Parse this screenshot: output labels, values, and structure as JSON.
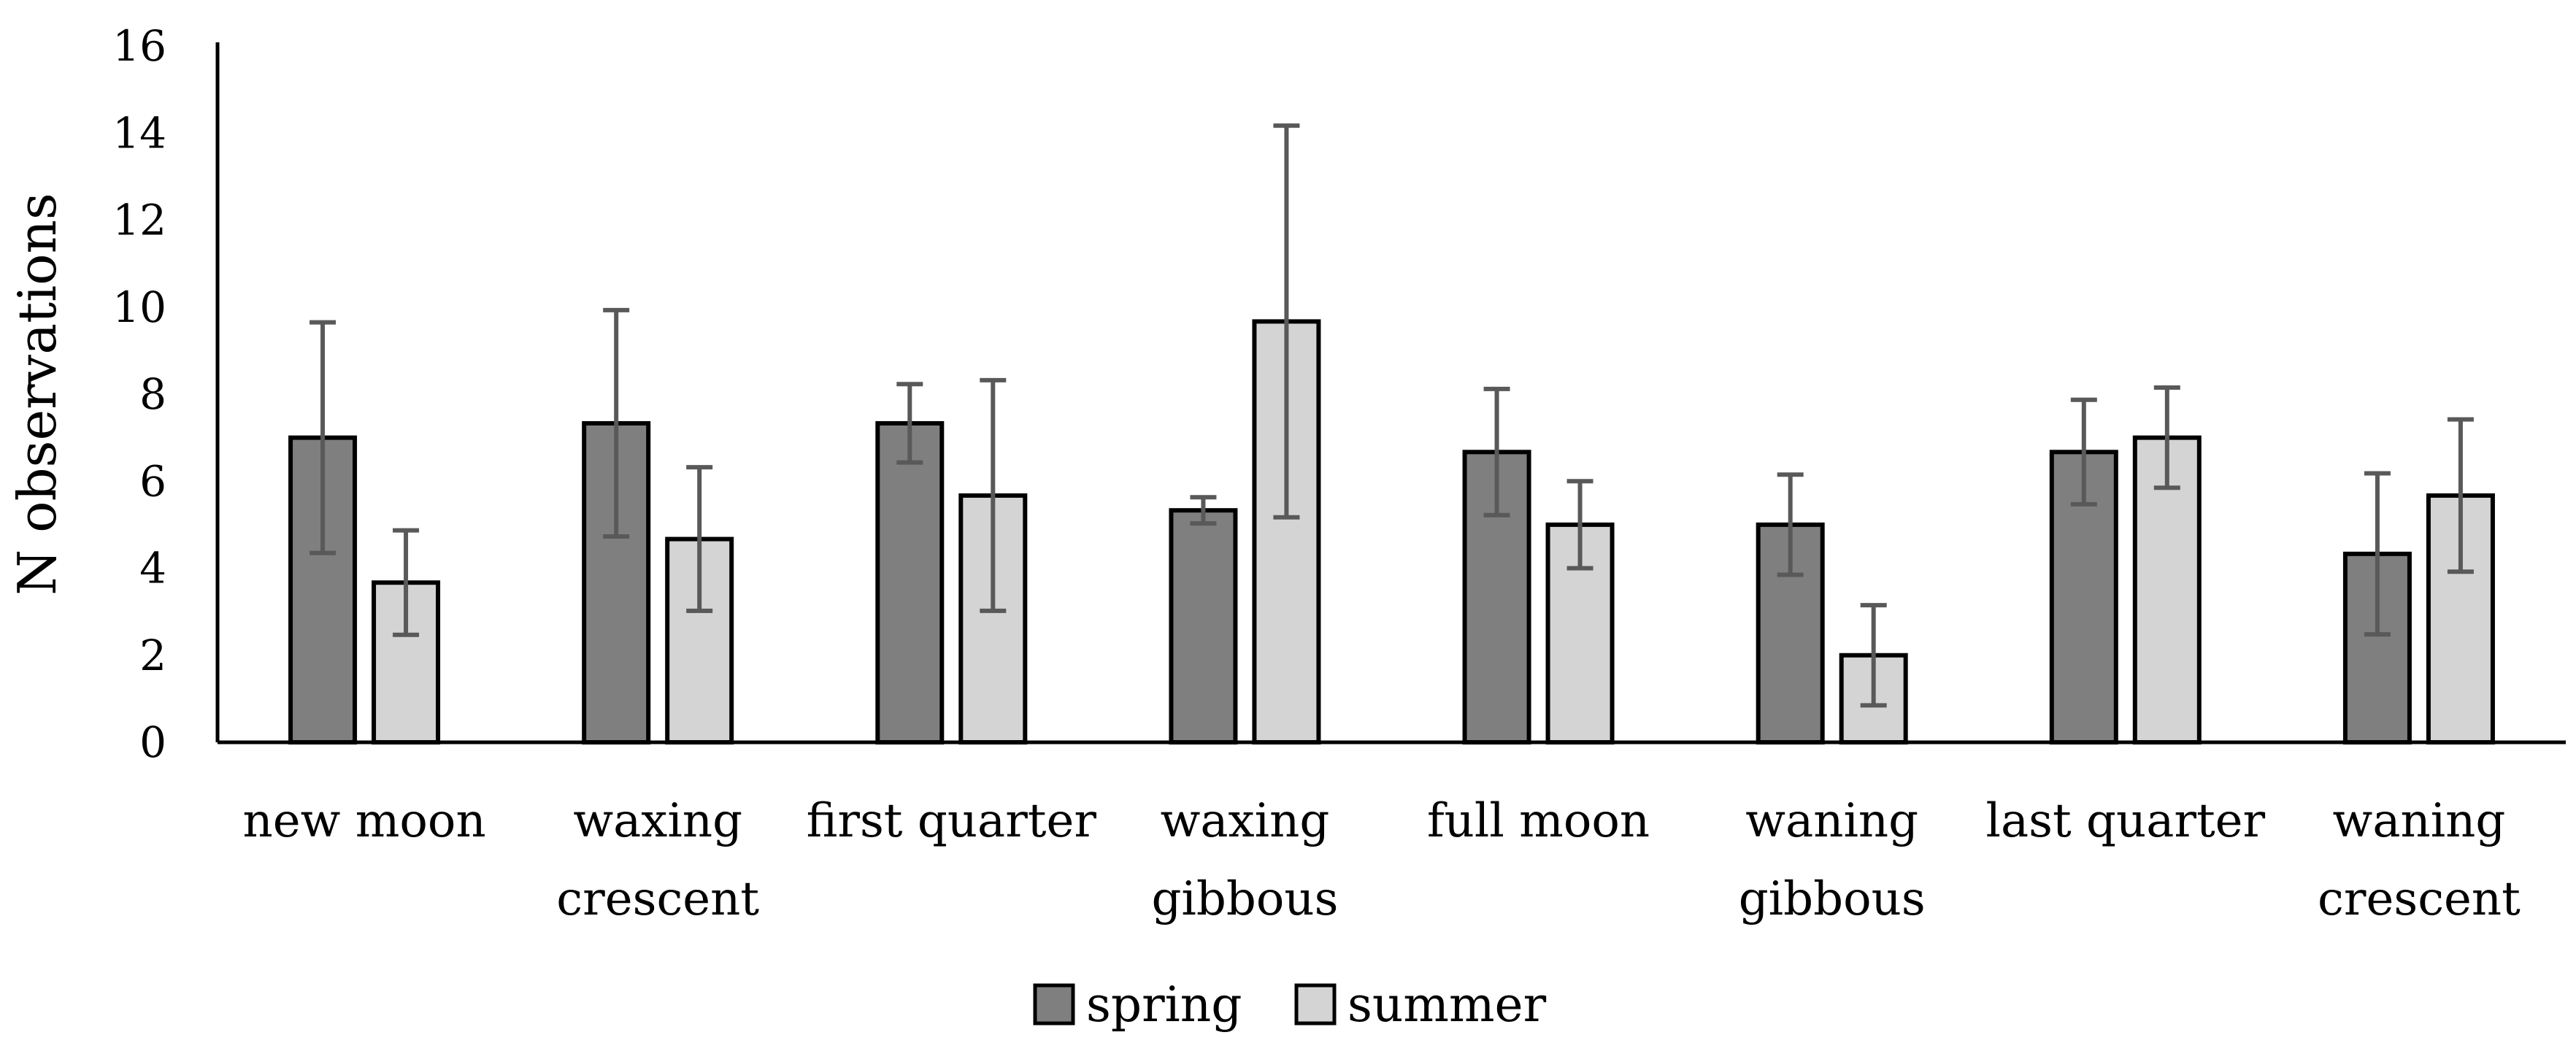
{
  "chart_data": {
    "type": "bar",
    "title": "",
    "xlabel": "",
    "ylabel": "N observations",
    "ylim": [
      0,
      16
    ],
    "yticks": [
      0,
      2,
      4,
      6,
      8,
      10,
      12,
      14,
      16
    ],
    "grid": false,
    "legend_position": "bottom-center",
    "categories": [
      [
        "new moon"
      ],
      [
        "waxing",
        "crescent"
      ],
      [
        "first quarter"
      ],
      [
        "waxing",
        "gibbous"
      ],
      [
        "full moon"
      ],
      [
        "waning",
        "gibbous"
      ],
      [
        "last quarter"
      ],
      [
        "waning",
        "crescent"
      ]
    ],
    "series": [
      {
        "name": "spring",
        "color": "#7f7f7f",
        "values": [
          7.0,
          7.33,
          7.33,
          5.33,
          6.67,
          5.0,
          6.67,
          4.33
        ],
        "error": [
          2.65,
          2.6,
          0.9,
          0.3,
          1.45,
          1.15,
          1.2,
          1.85
        ]
      },
      {
        "name": "summer",
        "color": "#d4d4d4",
        "values": [
          3.67,
          4.67,
          5.67,
          9.67,
          5.0,
          2.0,
          7.0,
          5.67
        ],
        "error": [
          1.2,
          1.65,
          2.65,
          4.5,
          1.0,
          1.15,
          1.15,
          1.75
        ]
      }
    ],
    "error_bar_color": "#595959"
  }
}
